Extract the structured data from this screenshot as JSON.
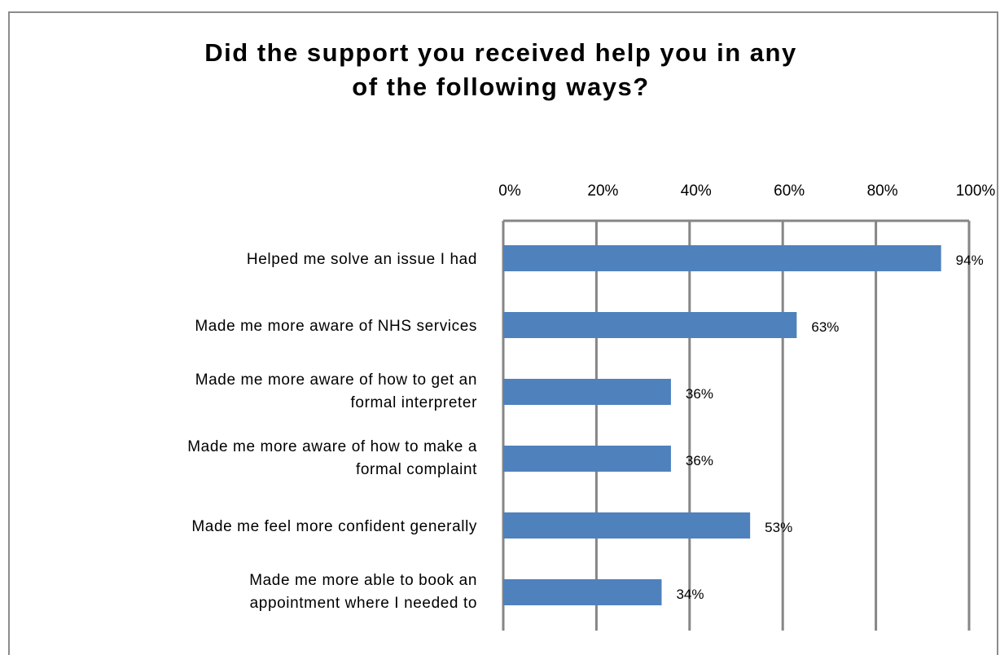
{
  "chart_data": {
    "type": "bar",
    "orientation": "horizontal",
    "title": [
      "Did the support you received help you in any",
      "of the following ways?"
    ],
    "categories": [
      [
        "Helped me solve an issue I had"
      ],
      [
        "Made me more aware of NHS services"
      ],
      [
        "Made me more aware of how to get an",
        "formal interpreter"
      ],
      [
        "Made me more aware of how to make a",
        "formal complaint"
      ],
      [
        "Made me feel more confident generally"
      ],
      [
        "Made me more able to book an",
        "appointment where I needed to"
      ]
    ],
    "values": [
      94,
      63,
      36,
      36,
      53,
      34
    ],
    "value_labels": [
      "94%",
      "63%",
      "36%",
      "36%",
      "53%",
      "34%"
    ],
    "xlim": [
      0,
      100
    ],
    "xticks": [
      "0%",
      "20%",
      "40%",
      "60%",
      "80%",
      "100%"
    ],
    "x_axis_position": "top",
    "grid": true,
    "bar_color": "#4f81bd"
  }
}
